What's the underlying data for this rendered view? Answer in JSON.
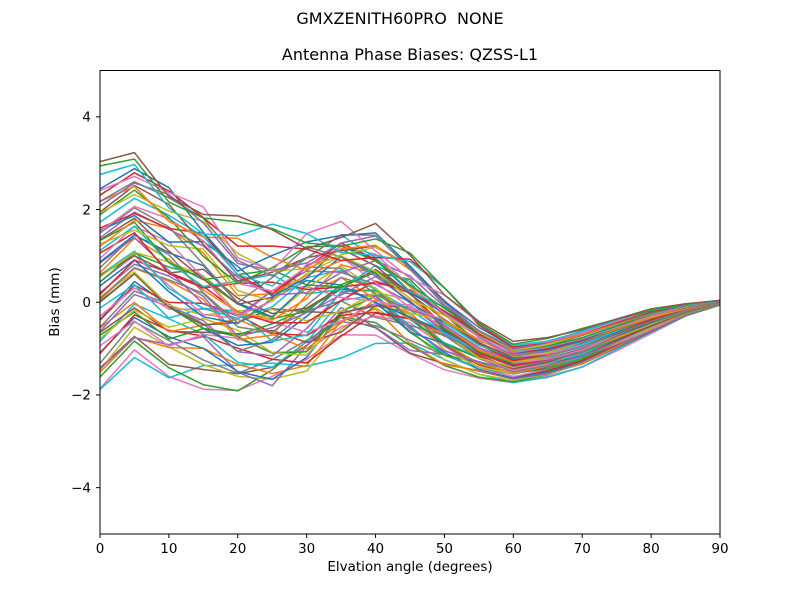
{
  "figure": {
    "suptitle": "GMXZENITH60PRO  NONE",
    "axes_title": "Antenna Phase Biases: QZSS-L1",
    "xlabel": "Elvation angle (degrees)",
    "ylabel": "Bias (mm)",
    "background_color": "#ffffff",
    "spine_color": "#000000"
  },
  "chart_data": {
    "type": "line",
    "suptitle": "GMXZENITH60PRO  NONE",
    "title": "Antenna Phase Biases: QZSS-L1",
    "xlabel": "Elvation angle (degrees)",
    "ylabel": "Bias (mm)",
    "xlim": [
      0,
      90
    ],
    "ylim": [
      -5,
      5
    ],
    "xticks": [
      0,
      10,
      20,
      30,
      40,
      50,
      60,
      70,
      80,
      90
    ],
    "yticks": [
      -4,
      -2,
      0,
      2,
      4
    ],
    "yticklabels": [
      "−4",
      "−2",
      "0",
      "2",
      "4"
    ],
    "grid": false,
    "legend": null,
    "x": [
      0,
      5,
      10,
      15,
      20,
      25,
      30,
      35,
      40,
      45,
      50,
      55,
      60,
      65,
      70,
      75,
      80,
      85,
      90
    ],
    "n_series": 64,
    "band_upper": [
      2.85,
      3.15,
      2.55,
      1.95,
      1.35,
      1.4,
      1.6,
      1.5,
      1.3,
      0.9,
      0.3,
      -0.4,
      -0.88,
      -0.78,
      -0.58,
      -0.36,
      -0.16,
      -0.04,
      0.04
    ],
    "band_lower": [
      -1.9,
      -1.05,
      -1.45,
      -1.55,
      -1.7,
      -1.65,
      -1.4,
      -0.8,
      -0.65,
      -0.95,
      -1.35,
      -1.62,
      -1.74,
      -1.6,
      -1.38,
      -1.02,
      -0.66,
      -0.3,
      -0.06
    ],
    "wiggle_amplitude": [
      0.15,
      0.18,
      0.35,
      0.45,
      0.5,
      0.5,
      0.5,
      0.45,
      0.4,
      0.3,
      0.18,
      0.08,
      0.03,
      0.03,
      0.03,
      0.02,
      0.02,
      0.01,
      0.005
    ],
    "series_model": "value(k) = mean(k) + a_i*half_width(k) + wiggle_amplitude(k)*smooth_noise_i(k); dense overlapping unlabeled curves read as a band",
    "seed": 11,
    "line_width": 1.5,
    "color_cycle": [
      "#1f77b4",
      "#ff7f0e",
      "#2ca02c",
      "#d62728",
      "#9467bd",
      "#8c564b",
      "#e377c2",
      "#7f7f7f",
      "#bcbd22",
      "#17becf"
    ]
  }
}
